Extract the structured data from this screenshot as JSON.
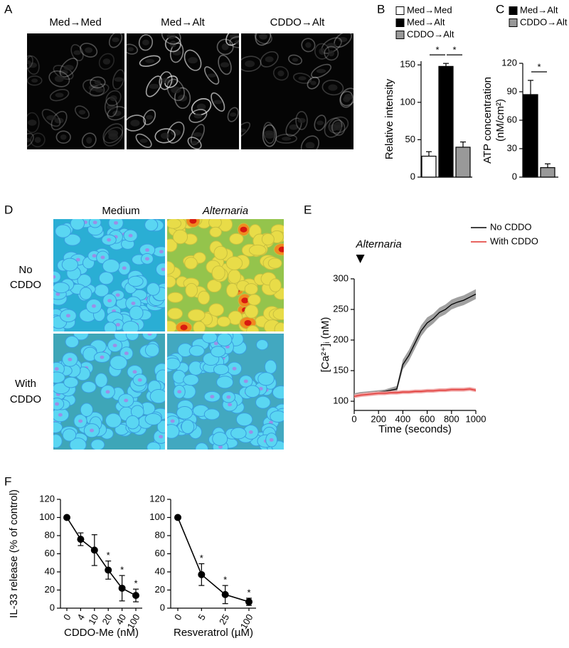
{
  "figure": {
    "panel_labels": [
      "A",
      "B",
      "C",
      "D",
      "E",
      "F"
    ],
    "panel_a": {
      "columns": [
        "Med→Med",
        "Med→Alt",
        "CDDO→Alt"
      ]
    },
    "panel_d": {
      "columns": [
        "Medium",
        "Alternaria"
      ],
      "rows": [
        [
          "No",
          "CDDO"
        ],
        [
          "With",
          "CDDO"
        ]
      ]
    }
  },
  "chart_data": [
    {
      "type": "bar",
      "categories": [
        null
      ],
      "ylabel": "Relative intensity",
      "ylim": [
        0,
        155
      ],
      "yticks": [
        0,
        50,
        100,
        150
      ],
      "series": [
        {
          "name": "Med→Med",
          "color": "#ffffff",
          "values": [
            28
          ],
          "errors": [
            6
          ]
        },
        {
          "name": "Med→Alt",
          "color": "#000000",
          "values": [
            148
          ],
          "errors": [
            4
          ]
        },
        {
          "name": "CDDO→Alt",
          "color": "#999999",
          "values": [
            40
          ],
          "errors": [
            7
          ]
        }
      ],
      "annotations": [
        "*",
        "*"
      ],
      "legend": "top"
    },
    {
      "type": "bar",
      "categories": [
        null
      ],
      "ylabel": [
        "ATP concentration",
        "(nM/cm²)"
      ],
      "ylim": [
        0,
        120
      ],
      "yticks": [
        0,
        30,
        60,
        90,
        120
      ],
      "series": [
        {
          "name": "Med→Alt",
          "color": "#000000",
          "values": [
            87
          ],
          "errors": [
            15
          ]
        },
        {
          "name": "CDDO→Alt",
          "color": "#999999",
          "values": [
            10
          ],
          "errors": [
            4
          ]
        }
      ],
      "annotations": [
        "*"
      ],
      "legend": "top"
    },
    {
      "type": "line",
      "x": [
        0,
        50,
        100,
        150,
        200,
        250,
        300,
        350,
        400,
        450,
        500,
        550,
        600,
        650,
        700,
        750,
        800,
        850,
        900,
        950,
        1000
      ],
      "xlabel": "Time (seconds)",
      "ylabel": "[Ca²⁺]ᵢ (nM)",
      "xlim": [
        0,
        1000
      ],
      "xticks": [
        0,
        200,
        400,
        600,
        800,
        1000
      ],
      "ylim": [
        85,
        300
      ],
      "yticks": [
        100,
        150,
        200,
        250,
        300
      ],
      "series": [
        {
          "name": "No CDDO",
          "color": "#000000",
          "band_color": "#a0a0a0",
          "values": [
            110,
            112,
            113,
            114,
            115,
            116,
            118,
            120,
            160,
            175,
            195,
            215,
            228,
            235,
            245,
            250,
            258,
            262,
            265,
            270,
            275
          ],
          "errors": [
            3,
            3,
            3,
            3,
            3,
            3,
            4,
            5,
            8,
            9,
            9,
            9,
            9,
            8,
            8,
            8,
            8,
            8,
            8,
            8,
            8
          ]
        },
        {
          "name": "With CDDO",
          "color": "#e0302c",
          "band_color": "#f0a0a0",
          "values": [
            108,
            110,
            111,
            112,
            113,
            113,
            114,
            114,
            115,
            115,
            116,
            116,
            117,
            117,
            118,
            118,
            119,
            119,
            119,
            120,
            118
          ],
          "errors": [
            3,
            3,
            3,
            3,
            3,
            3,
            3,
            3,
            3,
            3,
            3,
            3,
            3,
            3,
            3,
            3,
            3,
            3,
            3,
            3,
            3
          ]
        }
      ],
      "annotation": {
        "text": "Alternaria",
        "x": 50
      },
      "legend": "upper right"
    },
    {
      "type": "line",
      "categories": [
        0,
        4,
        10,
        20,
        40,
        100
      ],
      "xlabel": "CDDO-Me (nM)",
      "ylabel": "IL-33 release (% of control)",
      "ylim": [
        0,
        120
      ],
      "yticks": [
        0,
        20,
        40,
        60,
        80,
        100,
        120
      ],
      "series": [
        {
          "color": "#000000",
          "values": [
            100,
            76,
            64,
            42,
            22,
            14
          ],
          "errors": [
            null,
            7,
            17,
            10,
            14,
            7
          ]
        }
      ],
      "annotations": [
        null,
        null,
        null,
        "*",
        "*",
        "*"
      ]
    },
    {
      "type": "line",
      "categories": [
        0,
        5,
        25,
        100
      ],
      "xlabel": "Resveratrol (µM)",
      "ylim": [
        0,
        120
      ],
      "yticks": [
        0,
        20,
        40,
        60,
        80,
        100,
        120
      ],
      "series": [
        {
          "color": "#000000",
          "values": [
            100,
            37,
            15,
            7
          ],
          "errors": [
            null,
            12,
            10,
            4
          ]
        }
      ],
      "annotations": [
        null,
        "*",
        "*",
        "*"
      ]
    }
  ]
}
